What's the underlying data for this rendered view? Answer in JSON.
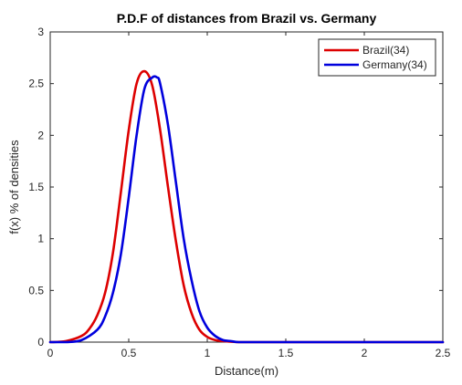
{
  "chart_data": {
    "type": "line",
    "title": "P.D.F of distances from Brazil vs. Germany",
    "xlabel": "Distance(m)",
    "ylabel": "f(x) % of densities",
    "xlim": [
      0,
      2.5
    ],
    "ylim": [
      0,
      3
    ],
    "xticks": [
      0,
      0.5,
      1,
      1.5,
      2,
      2.5
    ],
    "xtick_labels": [
      "0",
      "0.5",
      "1",
      "1.5",
      "2",
      "2.5"
    ],
    "yticks": [
      0,
      0.5,
      1,
      1.5,
      2,
      2.5,
      3
    ],
    "ytick_labels": [
      "0",
      "0.5",
      "1",
      "1.5",
      "2",
      "2.5",
      "3"
    ],
    "grid": false,
    "legend": "top-right",
    "series": [
      {
        "name": "Brazil(34)",
        "color": "#dd0000",
        "x": [
          0,
          0.1,
          0.2,
          0.25,
          0.3,
          0.35,
          0.4,
          0.45,
          0.5,
          0.55,
          0.6,
          0.65,
          0.7,
          0.75,
          0.8,
          0.85,
          0.9,
          0.95,
          1.0,
          1.05,
          1.1,
          1.2,
          1.3,
          1.5,
          2.0,
          2.5
        ],
        "y": [
          0,
          0.01,
          0.06,
          0.13,
          0.26,
          0.48,
          0.87,
          1.45,
          2.05,
          2.5,
          2.62,
          2.48,
          2.05,
          1.5,
          0.98,
          0.55,
          0.28,
          0.12,
          0.05,
          0.02,
          0.01,
          0,
          0,
          0,
          0,
          0
        ]
      },
      {
        "name": "Germany(34)",
        "color": "#0000dd",
        "x": [
          0,
          0.1,
          0.2,
          0.3,
          0.35,
          0.4,
          0.45,
          0.5,
          0.55,
          0.6,
          0.65,
          0.68,
          0.7,
          0.75,
          0.8,
          0.85,
          0.9,
          0.95,
          1.0,
          1.05,
          1.1,
          1.15,
          1.2,
          1.3,
          1.5,
          2.0,
          2.5
        ],
        "y": [
          0,
          0,
          0.02,
          0.12,
          0.25,
          0.48,
          0.85,
          1.4,
          2.0,
          2.45,
          2.56,
          2.56,
          2.5,
          2.1,
          1.55,
          1.0,
          0.6,
          0.3,
          0.14,
          0.06,
          0.02,
          0.01,
          0,
          0,
          0,
          0,
          0
        ]
      }
    ]
  }
}
